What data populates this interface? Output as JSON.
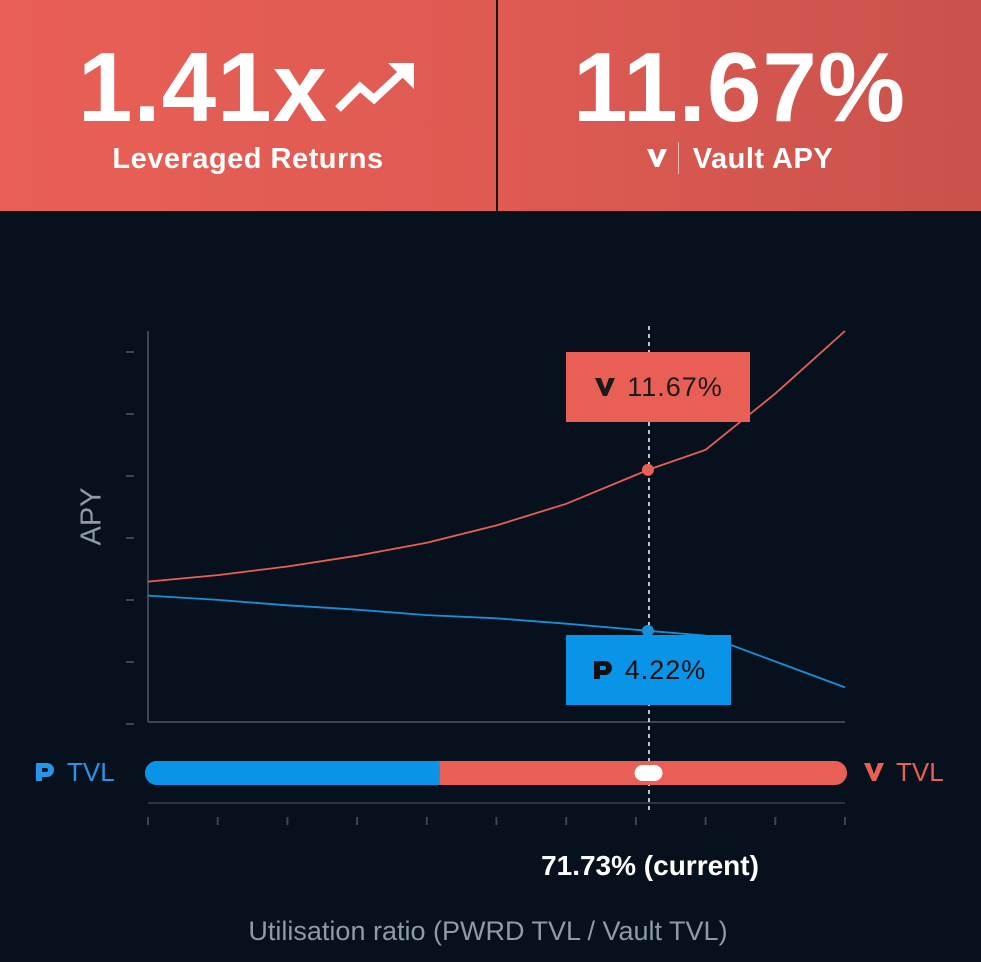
{
  "header": {
    "leverage": {
      "value": "1.41x",
      "label": "Leveraged Returns",
      "icon": "trend-up-icon"
    },
    "vault": {
      "value": "11.67%",
      "label": "Vault APY",
      "icon": "vault-logo-icon"
    }
  },
  "chart": {
    "y_axis_label": "APY",
    "x_axis_label": "Utilisation ratio (PWRD TVL / Vault TVL)",
    "current_label": "71.73% (current)",
    "tooltip_vault": "11.67%",
    "tooltip_pwrd": "4.22%"
  },
  "tvl_bar": {
    "left_label": "TVL",
    "right_label": "TVL",
    "pwrd_fraction": 0.42,
    "slider_position": 0.7173
  },
  "colors": {
    "accent_red": "#e95f55",
    "accent_blue": "#0a94e8",
    "background": "#06111d"
  },
  "chart_data": {
    "type": "line",
    "ylabel": "APY",
    "xlabel": "Utilisation ratio (PWRD TVL / Vault TVL)",
    "x": [
      0,
      0.1,
      0.2,
      0.3,
      0.4,
      0.5,
      0.6,
      0.7173,
      0.8,
      0.9,
      1.0
    ],
    "series": [
      {
        "name": "Vault",
        "values": [
          6.5,
          6.8,
          7.2,
          7.7,
          8.3,
          9.1,
          10.1,
          11.67,
          12.6,
          15.2,
          18.1
        ]
      },
      {
        "name": "PWRD",
        "values": [
          5.85,
          5.65,
          5.4,
          5.2,
          4.95,
          4.8,
          4.55,
          4.22,
          4.0,
          2.8,
          1.6
        ]
      }
    ],
    "current_x": 0.7173,
    "grid": false
  }
}
